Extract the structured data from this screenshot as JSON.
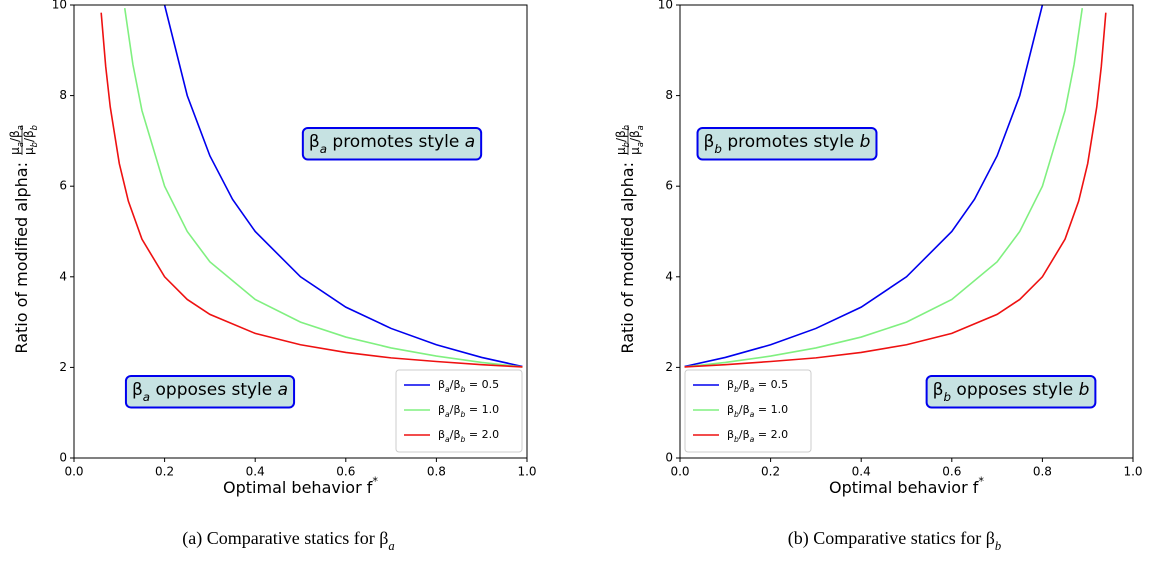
{
  "chart_data": [
    {
      "type": "line",
      "xlabel": [
        "Optimal behavior f",
        {
          "sup": "*"
        }
      ],
      "ylabel": {
        "text": [
          "Ratio of modified alpha:"
        ],
        "numerator": [
          "μ",
          {
            "sub": "a"
          },
          "/β",
          {
            "sub": "a"
          }
        ],
        "denominator": [
          "μ",
          {
            "sub": "b"
          },
          "/β",
          {
            "sub": "b"
          }
        ]
      },
      "caption": [
        "(a) Comparative statics for β",
        {
          "sub": "a"
        }
      ],
      "xlim": [
        0,
        1
      ],
      "ylim": [
        0,
        10
      ],
      "xticks": [
        {
          "value": 0,
          "label": "0.0"
        },
        0.2,
        0.4,
        0.6,
        0.8,
        {
          "value": 1,
          "label": "1.0"
        }
      ],
      "yticks": [
        0,
        2,
        4,
        6,
        8,
        10
      ],
      "legend": "lower right",
      "annotations": [
        {
          "text": [
            "β",
            {
              "sub": "a"
            },
            " promotes style ",
            {
              "em": "a"
            }
          ]
        },
        {
          "text": [
            "β",
            {
              "sub": "a"
            },
            " opposes style ",
            {
              "em": "a"
            }
          ]
        }
      ],
      "series": [
        {
          "name": [
            "β",
            {
              "sub": "a"
            },
            "/β",
            {
              "sub": "b"
            },
            " = 0.5"
          ],
          "color": "#0000ee",
          "x": [
            0.2,
            0.25,
            0.3,
            0.35,
            0.4,
            0.5,
            0.6,
            0.7,
            0.8,
            0.9,
            0.99
          ],
          "values": [
            10,
            8,
            6.67,
            5.71,
            5,
            4,
            3.33,
            2.86,
            2.5,
            2.22,
            2.02
          ]
        },
        {
          "name": [
            "β",
            {
              "sub": "a"
            },
            "/β",
            {
              "sub": "b"
            },
            " = 1.0"
          ],
          "color": "#80f080",
          "x": [
            0.112,
            0.13,
            0.15,
            0.2,
            0.25,
            0.3,
            0.4,
            0.5,
            0.6,
            0.7,
            0.8,
            0.9,
            0.99
          ],
          "values": [
            9.93,
            8.69,
            7.67,
            6,
            5,
            4.33,
            3.5,
            3,
            2.67,
            2.43,
            2.25,
            2.11,
            2.01
          ]
        },
        {
          "name": [
            "β",
            {
              "sub": "a"
            },
            "/β",
            {
              "sub": "b"
            },
            " = 2.0"
          ],
          "color": "#ee1111",
          "x": [
            0.06,
            0.07,
            0.08,
            0.1,
            0.12,
            0.15,
            0.2,
            0.25,
            0.3,
            0.4,
            0.5,
            0.6,
            0.7,
            0.8,
            0.9,
            0.99
          ],
          "values": [
            9.83,
            8.64,
            7.75,
            6.5,
            5.67,
            4.83,
            4,
            3.5,
            3.17,
            2.75,
            2.5,
            2.33,
            2.21,
            2.13,
            2.06,
            2.01
          ]
        }
      ]
    },
    {
      "type": "line",
      "xlabel": [
        "Optimal behavior f",
        {
          "sup": "*"
        }
      ],
      "ylabel": {
        "text": [
          "Ratio of modified alpha:"
        ],
        "numerator": [
          "μ",
          {
            "sub": "b"
          },
          "/β",
          {
            "sub": "b"
          }
        ],
        "denominator": [
          "μ",
          {
            "sub": "a"
          },
          "/β",
          {
            "sub": "a"
          }
        ]
      },
      "caption": [
        "(b) Comparative statics for β",
        {
          "sub": "b"
        }
      ],
      "xlim": [
        0,
        1
      ],
      "ylim": [
        0,
        10
      ],
      "xticks": [
        {
          "value": 0,
          "label": "0.0"
        },
        0.2,
        0.4,
        0.6,
        0.8,
        {
          "value": 1,
          "label": "1.0"
        }
      ],
      "yticks": [
        0,
        2,
        4,
        6,
        8,
        10
      ],
      "legend": "lower left",
      "annotations": [
        {
          "text": [
            "β",
            {
              "sub": "b"
            },
            " promotes style ",
            {
              "em": "b"
            }
          ]
        },
        {
          "text": [
            "β",
            {
              "sub": "b"
            },
            " opposes style ",
            {
              "em": "b"
            }
          ]
        }
      ],
      "series": [
        {
          "name": [
            "β",
            {
              "sub": "b"
            },
            "/β",
            {
              "sub": "a"
            },
            " = 0.5"
          ],
          "color": "#0000ee",
          "x": [
            0.01,
            0.1,
            0.2,
            0.3,
            0.4,
            0.5,
            0.6,
            0.65,
            0.7,
            0.75,
            0.8
          ],
          "values": [
            2.02,
            2.22,
            2.5,
            2.86,
            3.33,
            4,
            5,
            5.71,
            6.67,
            8,
            10
          ]
        },
        {
          "name": [
            "β",
            {
              "sub": "b"
            },
            "/β",
            {
              "sub": "a"
            },
            " = 1.0"
          ],
          "color": "#80f080",
          "x": [
            0.01,
            0.1,
            0.2,
            0.3,
            0.4,
            0.5,
            0.6,
            0.7,
            0.75,
            0.8,
            0.85,
            0.87,
            0.888
          ],
          "values": [
            2.01,
            2.11,
            2.25,
            2.43,
            2.67,
            3,
            3.5,
            4.33,
            5,
            6,
            7.67,
            8.69,
            9.93
          ]
        },
        {
          "name": [
            "β",
            {
              "sub": "b"
            },
            "/β",
            {
              "sub": "a"
            },
            " = 2.0"
          ],
          "color": "#ee1111",
          "x": [
            0.01,
            0.1,
            0.2,
            0.3,
            0.4,
            0.5,
            0.6,
            0.7,
            0.75,
            0.8,
            0.85,
            0.88,
            0.9,
            0.92,
            0.93,
            0.94
          ],
          "values": [
            2.01,
            2.06,
            2.13,
            2.21,
            2.33,
            2.5,
            2.75,
            3.17,
            3.5,
            4,
            4.83,
            5.67,
            6.5,
            7.75,
            8.64,
            9.83
          ]
        }
      ]
    }
  ]
}
